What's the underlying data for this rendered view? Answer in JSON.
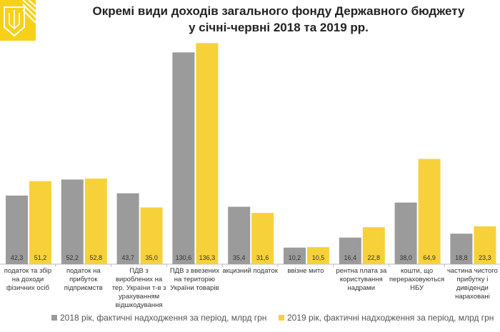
{
  "chart_data": {
    "type": "bar",
    "title": [
      "Окремі види доходів загального фонду Державного бюджету",
      "у січні-червні 2018 та 2019 рр."
    ],
    "xlabel": "",
    "ylabel": "",
    "ylim": [
      0,
      140
    ],
    "grid": false,
    "legend_position": "bottom",
    "categories": [
      "податок та збір на доходи фізичних осіб",
      "податок на прибуток підприємств",
      "ПДВ з вироблених на тер. України т-в з урахуванням відшкодування",
      "ПДВ з ввезених на територію України товарів",
      "акцизний податок",
      "ввізне мито",
      "рентна плата за користування надрами",
      "кошти, що перераховуються НБУ",
      "частина чистого прибутку і дивіденди нараховані"
    ],
    "series": [
      {
        "name": "2018 рік, фактичні надходження за період, млрд грн",
        "color": "#9b9b9b",
        "values": [
          42.3,
          52.2,
          43.7,
          130.6,
          35.4,
          10.2,
          16.4,
          38.0,
          18.8
        ],
        "labels": [
          "42,3",
          "52,2",
          "43,7",
          "130,6",
          "35,4",
          "10,2",
          "16,4",
          "38,0",
          "18,8"
        ]
      },
      {
        "name": "2019 рік, фактичні надходження за період, млрд грн",
        "color": "#f7d13a",
        "values": [
          51.2,
          52.8,
          35.0,
          136.3,
          31.6,
          10.5,
          22.8,
          64.9,
          23.3
        ],
        "labels": [
          "51,2",
          "52,8",
          "35,0",
          "136,3",
          "31,6",
          "10,5",
          "22,8",
          "64,9",
          "23,3"
        ]
      }
    ]
  },
  "logo_color": "#f7d117"
}
